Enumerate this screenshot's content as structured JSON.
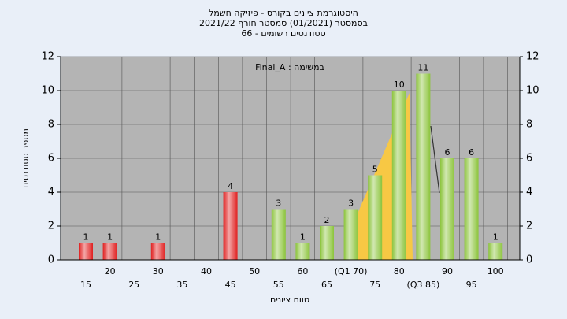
{
  "chart_data": {
    "type": "bar",
    "title_lines": [
      "היסטוגרמת ציונים בקורס - פיזיקה חשמל",
      "בסמסטר (01/2021) סמסטר חורף 2021/22",
      "סטודנטים רשומים - 66"
    ],
    "annotation": "במשימה : Final_A",
    "xlabel": "טווח ציונים",
    "ylabel": "מספר סטודנטים",
    "categories": [
      "15",
      "20",
      "25",
      "30",
      "35",
      "40",
      "45",
      "50",
      "55",
      "60",
      "65",
      "(Q1 70)",
      "75",
      "80",
      "(Q3 85)",
      "90",
      "95",
      "100"
    ],
    "values": [
      1,
      1,
      0,
      1,
      0,
      0,
      4,
      0,
      3,
      1,
      2,
      3,
      5,
      10,
      11,
      6,
      6,
      1
    ],
    "colors": [
      "#e02020",
      "#e02020",
      "#e02020",
      "#e02020",
      "#e02020",
      "#e02020",
      "#e02020",
      "#8cc43c",
      "#8cc43c",
      "#8cc43c",
      "#8cc43c",
      "#8cc43c",
      "#8cc43c",
      "#8cc43c",
      "#8cc43c",
      "#8cc43c",
      "#8cc43c",
      "#8cc43c"
    ],
    "ylim": [
      0,
      12
    ],
    "yticks": [
      0,
      2,
      4,
      6,
      8,
      10,
      12
    ],
    "grid": true
  }
}
